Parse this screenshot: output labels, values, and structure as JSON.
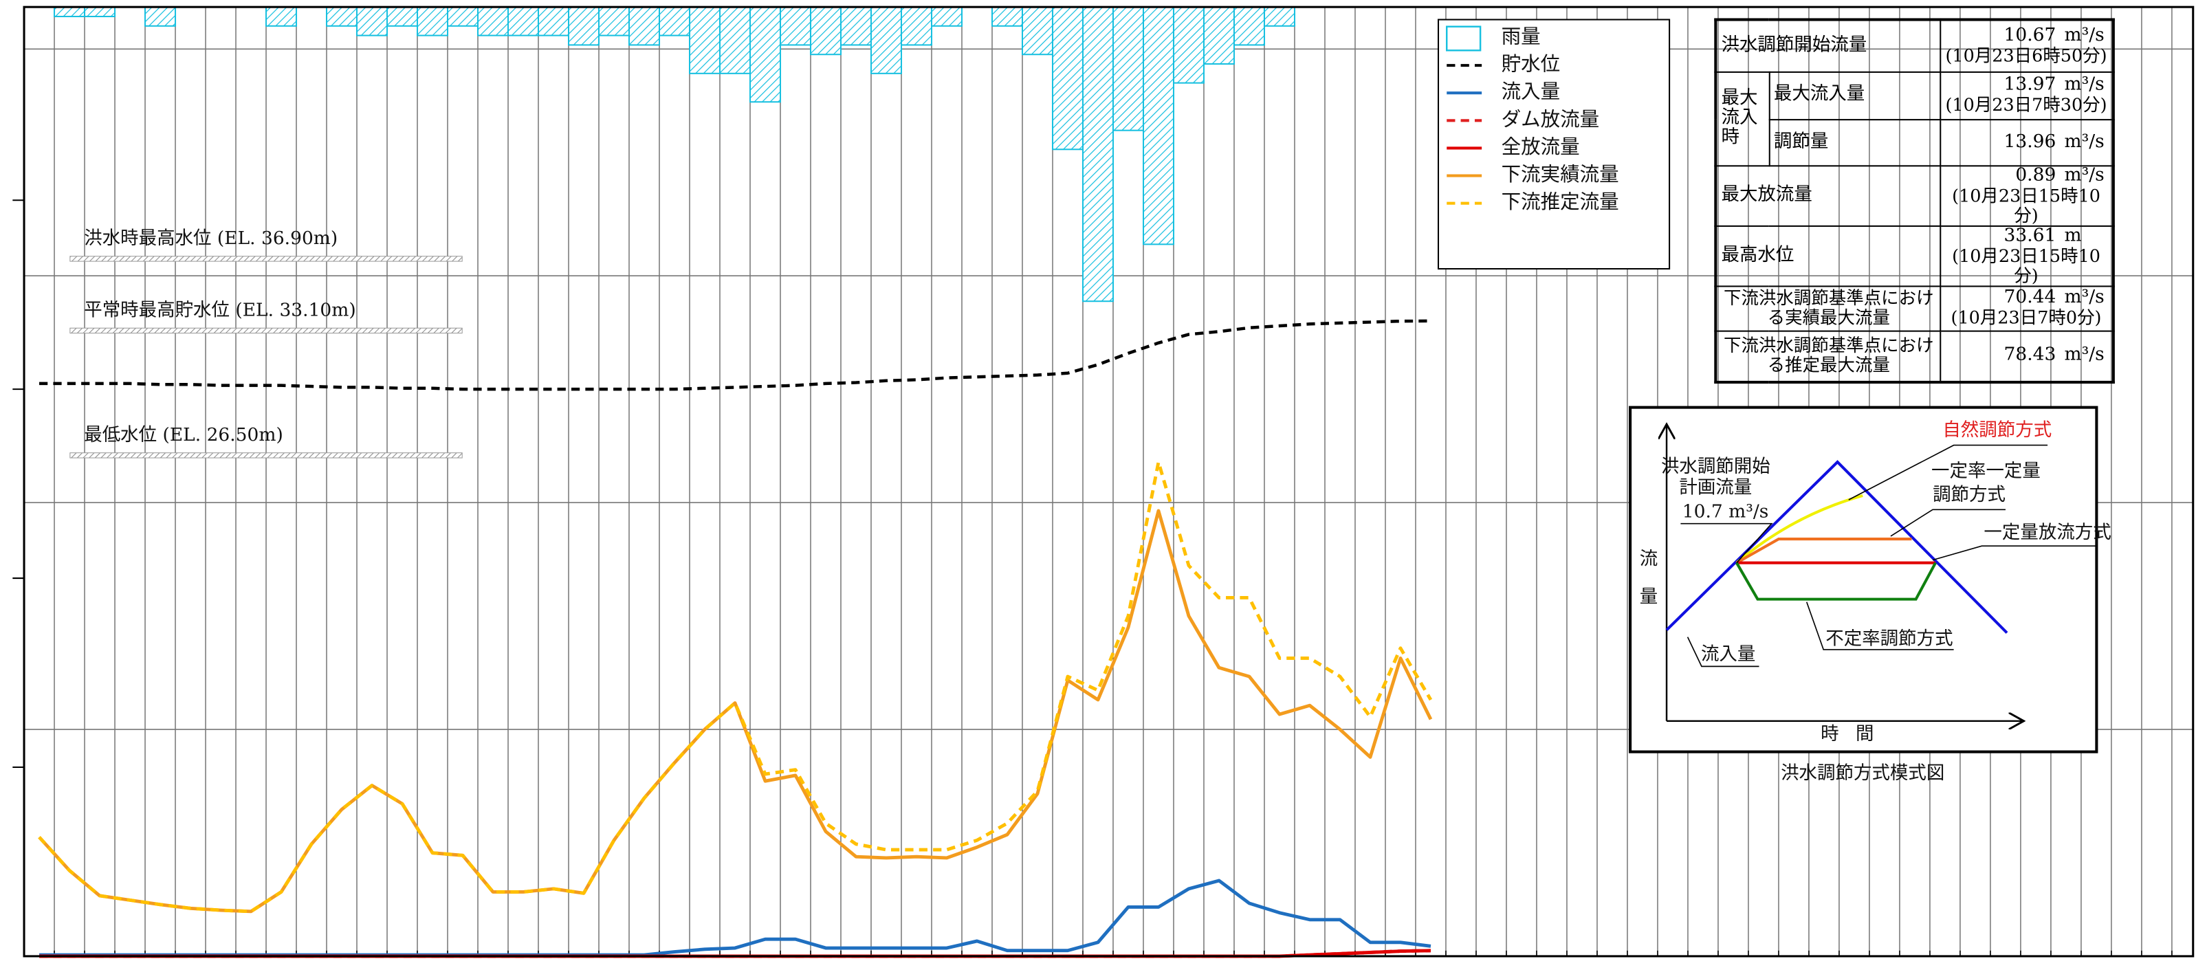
{
  "chart_data": {
    "type": "line",
    "x": [
      0,
      1,
      2,
      3,
      4,
      5,
      6,
      7,
      8,
      9,
      10,
      11,
      12,
      13,
      14,
      15,
      16,
      17,
      18,
      19,
      20,
      21,
      22,
      23,
      24,
      25,
      26,
      27,
      28,
      29,
      30,
      31,
      32,
      33,
      34,
      35,
      36,
      37,
      38,
      39,
      40,
      41,
      42,
      43,
      44,
      45,
      46
    ],
    "xlim": [
      -0.5,
      71.2
    ],
    "ylim": [
      0,
      150
    ],
    "yticks": [
      0,
      36,
      72,
      108,
      144
    ],
    "grid": true,
    "y2lim": [
      0,
      50
    ],
    "y2ticks": [
      10,
      20,
      30,
      40
    ],
    "y3lim": [
      0,
      100
    ],
    "series": [
      {
        "name": "雨量",
        "type": "bar",
        "axis": "y3",
        "color": "#18c0e0",
        "values": [
          0,
          1,
          1,
          0,
          2,
          0,
          0,
          0,
          2,
          0,
          2,
          3,
          2,
          3,
          2,
          3,
          3,
          3,
          4,
          3,
          4,
          3,
          7,
          7,
          10,
          4,
          5,
          4,
          7,
          4,
          2,
          0,
          2,
          5,
          15,
          31,
          13,
          25,
          8,
          6,
          4,
          2,
          0,
          0,
          0,
          0,
          0
        ]
      },
      {
        "name": "貯水位",
        "axis": "y2",
        "color": "#000000",
        "dash": true,
        "values": [
          30.3,
          30.3,
          30.3,
          30.3,
          30.25,
          30.25,
          30.2,
          30.2,
          30.2,
          30.15,
          30.1,
          30.1,
          30.05,
          30.05,
          30.0,
          30.0,
          30.0,
          30.0,
          30.0,
          30.0,
          30.0,
          30.0,
          30.05,
          30.1,
          30.15,
          30.2,
          30.3,
          30.35,
          30.45,
          30.5,
          30.6,
          30.65,
          30.7,
          30.75,
          30.85,
          31.3,
          31.9,
          32.45,
          32.9,
          33.05,
          33.25,
          33.35,
          33.45,
          33.5,
          33.55,
          33.6,
          33.61
        ]
      },
      {
        "name": "流入量",
        "color": "#1f6fc0",
        "values": [
          0.2,
          0.2,
          0.2,
          0.2,
          0.2,
          0.2,
          0.2,
          0.2,
          0.2,
          0.2,
          0.2,
          0.2,
          0.2,
          0.2,
          0.2,
          0.2,
          0.2,
          0.2,
          0.2,
          0.2,
          0.2,
          0.7,
          1.1,
          1.3,
          2.7,
          2.7,
          1.3,
          1.3,
          1.3,
          1.3,
          1.3,
          2.4,
          0.9,
          0.9,
          0.9,
          2.2,
          7.8,
          7.8,
          10.7,
          12.0,
          8.4,
          6.9,
          5.8,
          5.8,
          2.2,
          2.2,
          1.6
        ]
      },
      {
        "name": "ダム放流量",
        "color": "#e02020",
        "dash": true,
        "values": [
          0,
          0,
          0,
          0,
          0,
          0,
          0,
          0,
          0,
          0,
          0,
          0,
          0,
          0,
          0,
          0,
          0,
          0,
          0,
          0,
          0,
          0,
          0,
          0,
          0,
          0,
          0,
          0,
          0,
          0,
          0,
          0,
          0,
          0,
          0,
          0,
          0,
          0,
          0,
          0,
          0,
          0,
          0.2,
          0.4,
          0.6,
          0.8,
          0.89
        ]
      },
      {
        "name": "全放流量",
        "color": "#e00000",
        "values": [
          0,
          0,
          0,
          0,
          0,
          0,
          0,
          0,
          0,
          0,
          0,
          0,
          0,
          0,
          0,
          0,
          0,
          0,
          0,
          0,
          0,
          0,
          0,
          0,
          0,
          0,
          0,
          0,
          0,
          0,
          0,
          0,
          0,
          0,
          0,
          0,
          0,
          0,
          0,
          0,
          0,
          0,
          0.2,
          0.4,
          0.6,
          0.8,
          0.89
        ]
      },
      {
        "name": "下流実績流量",
        "color": "#f39c1e",
        "values": [
          18.9,
          13.6,
          9.6,
          8.9,
          8.2,
          7.6,
          7.3,
          7.1,
          10.2,
          17.8,
          23.3,
          27.1,
          24.2,
          16.4,
          16.0,
          10.2,
          10.2,
          10.7,
          10.0,
          18.4,
          25.1,
          30.7,
          36.0,
          40.2,
          27.8,
          28.7,
          19.8,
          15.8,
          15.6,
          15.8,
          15.6,
          17.3,
          19.3,
          25.8,
          43.8,
          40.7,
          52.2,
          70.7,
          54.0,
          45.8,
          44.4,
          38.4,
          39.8,
          36.0,
          31.6,
          47.3,
          37.6
        ]
      },
      {
        "name": "下流推定流量",
        "color": "#ffbf00",
        "dash": true,
        "values": [
          18.9,
          13.6,
          9.6,
          8.9,
          8.2,
          7.6,
          7.3,
          7.1,
          10.2,
          17.8,
          23.3,
          27.1,
          24.2,
          16.4,
          16.0,
          10.2,
          10.2,
          10.7,
          10.0,
          18.4,
          25.1,
          30.7,
          36.0,
          40.2,
          28.9,
          29.6,
          21.1,
          17.8,
          16.9,
          16.9,
          16.9,
          18.4,
          21.1,
          26.2,
          44.4,
          42.2,
          54.0,
          78.43,
          62.0,
          56.9,
          56.9,
          47.3,
          47.3,
          44.4,
          38.0,
          48.9,
          40.7
        ]
      }
    ],
    "reference_lines": [
      {
        "label": "洪水時最高水位 (EL. 36.90m)",
        "value": 36.9
      },
      {
        "label": "平常時最高貯水位 (EL. 33.10m)",
        "value": 33.1
      },
      {
        "label": "最低水位 (EL. 26.50m)",
        "value": 26.5
      }
    ],
    "info_table": {
      "rows": [
        {
          "label": "洪水調節開始流量",
          "value": 10.67,
          "unit": "m³/s",
          "time": "(10月23日6時50分)"
        },
        {
          "group": "最大流入時",
          "label": "最大流入量",
          "value": 13.97,
          "unit": "m³/s",
          "time": "(10月23日7時30分)"
        },
        {
          "label": "調節量",
          "value": 13.96,
          "unit": "m³/s"
        },
        {
          "label": "最大放流量",
          "value": 0.89,
          "unit": "m³/s",
          "time": "(10月23日15時10分)"
        },
        {
          "label": "最高水位",
          "value": 33.61,
          "unit": "m",
          "time": "(10月23日15時10分)"
        },
        {
          "label": "下流洪水調節基準点における実績最大流量",
          "value": 70.44,
          "unit": "m³/s",
          "time": "(10月23日7時0分)"
        },
        {
          "label": "下流洪水調節基準点における推定最大流量",
          "value": 78.43,
          "unit": "m³/s"
        }
      ]
    },
    "schematic": {
      "title": "洪水調節方式模式図",
      "y_label": "流量",
      "x_label": "時間",
      "start_label": [
        "洪水調節開始",
        "計画流量"
      ],
      "start_flow": "10.7 m³/s",
      "natural": "自然調節方式",
      "fixed_rate": [
        "一定率一定量",
        "調節方式"
      ],
      "fixed_discharge": "一定量放流方式",
      "variable_rate": "不定率調節方式",
      "inflow": "流入量"
    }
  }
}
